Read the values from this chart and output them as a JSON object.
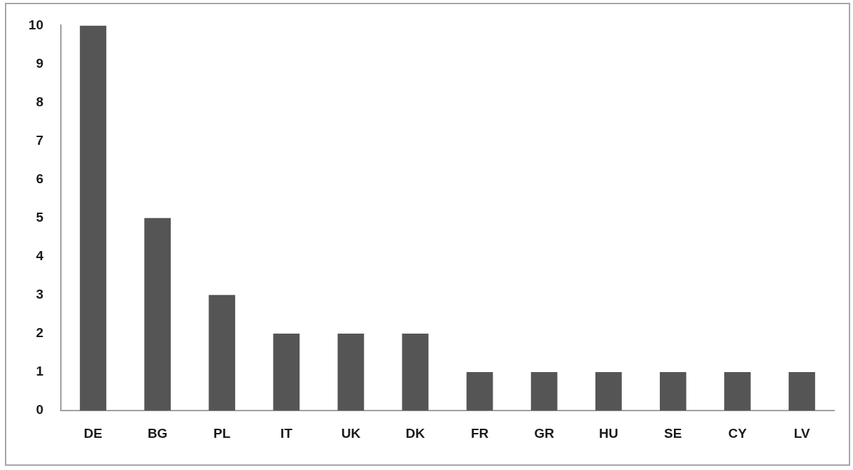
{
  "chart_data": {
    "type": "bar",
    "categories": [
      "DE",
      "BG",
      "PL",
      "IT",
      "UK",
      "DK",
      "FR",
      "GR",
      "HU",
      "SE",
      "CY",
      "LV"
    ],
    "values": [
      10,
      5,
      3,
      2,
      2,
      2,
      1,
      1,
      1,
      1,
      1,
      1
    ],
    "color": "#555555",
    "ylim": [
      0,
      10
    ],
    "yticks": [
      0,
      1,
      2,
      3,
      4,
      5,
      6,
      7,
      8,
      9,
      10
    ]
  }
}
